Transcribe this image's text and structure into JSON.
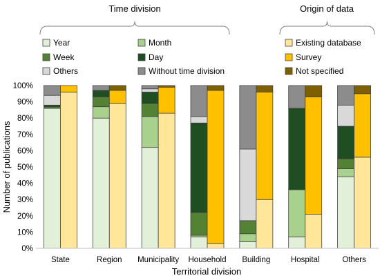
{
  "chart_data": {
    "type": "bar",
    "subtype": "stacked-100",
    "categories": [
      "State",
      "Region",
      "Municipality",
      "Household",
      "Building",
      "Hospital",
      "Others"
    ],
    "xlabel": "Territorial division",
    "ylabel": "Number of publications",
    "ylim": [
      0,
      100
    ],
    "yticks": [
      "0%",
      "10%",
      "20%",
      "30%",
      "40%",
      "50%",
      "60%",
      "70%",
      "80%",
      "90%",
      "100%"
    ],
    "grid": false,
    "groups": [
      {
        "title": "Time division",
        "bar": "left",
        "series": [
          {
            "name": "Year",
            "color": "#e2f0d9",
            "values": [
              86,
              80,
              62,
              7,
              4,
              7,
              44
            ]
          },
          {
            "name": "Month",
            "color": "#a9d18e",
            "values": [
              0,
              7,
              19,
              1,
              5,
              29,
              5
            ]
          },
          {
            "name": "Week",
            "color": "#548235",
            "values": [
              1,
              6,
              8,
              14,
              8,
              0,
              6
            ]
          },
          {
            "name": "Day",
            "color": "#1f4e23",
            "values": [
              1,
              4,
              7,
              55,
              0,
              50,
              20
            ]
          },
          {
            "name": "Others",
            "color": "#d9d9d9",
            "values": [
              6,
              0,
              2,
              4,
              44,
              0,
              13
            ]
          },
          {
            "name": "Without time division",
            "color": "#8c8c8c",
            "values": [
              6,
              3,
              2,
              19,
              39,
              14,
              12
            ]
          }
        ]
      },
      {
        "title": "Origin of data",
        "bar": "right",
        "series": [
          {
            "name": "Existing database",
            "color": "#ffe699",
            "values": [
              96,
              89,
              83,
              3,
              30,
              21,
              56
            ]
          },
          {
            "name": "Survey",
            "color": "#ffc000",
            "values": [
              4,
              8,
              16,
              94,
              66,
              72,
              39
            ]
          },
          {
            "name": "Not specified",
            "color": "#7f6000",
            "values": [
              0,
              3,
              1,
              3,
              4,
              7,
              5
            ]
          }
        ]
      }
    ]
  }
}
